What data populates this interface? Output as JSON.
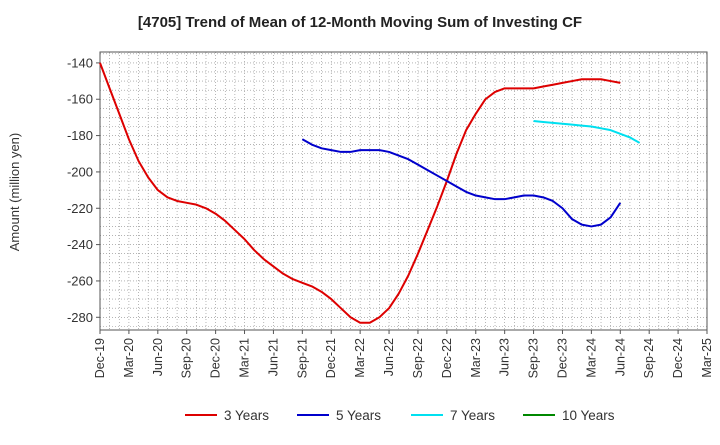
{
  "chart_data": {
    "type": "line",
    "title": "[4705]  Trend of Mean of 12-Month Moving Sum of Investing CF",
    "ylabel": "Amount (million yen)",
    "xlabel": "",
    "ylim": [
      -287,
      -134
    ],
    "yticks": [
      -140,
      -160,
      -180,
      -200,
      -220,
      -240,
      -260,
      -280
    ],
    "grid": true,
    "legend_position": "bottom",
    "x_start": "Dec-19",
    "x_end": "Mar-25",
    "x_tick_labels": [
      "Dec-19",
      "Mar-20",
      "Jun-20",
      "Sep-20",
      "Dec-20",
      "Mar-21",
      "Jun-21",
      "Sep-21",
      "Dec-21",
      "Mar-22",
      "Jun-22",
      "Sep-22",
      "Dec-22",
      "Mar-23",
      "Jun-23",
      "Sep-23",
      "Dec-23",
      "Mar-24",
      "Jun-24",
      "Sep-24",
      "Dec-24",
      "Mar-25"
    ],
    "series": [
      {
        "name": "3 Years",
        "color": "#dd0000",
        "start": "Dec-19",
        "values": [
          -140,
          -154,
          -168,
          -182,
          -194,
          -203,
          -210,
          -214,
          -216,
          -217,
          -218,
          -220,
          -223,
          -227,
          -232,
          -237,
          -243,
          -248,
          -252,
          -256,
          -259,
          -261,
          -263,
          -266,
          -270,
          -275,
          -280,
          -283,
          -283,
          -280,
          -275,
          -267,
          -257,
          -245,
          -232,
          -219,
          -205,
          -190,
          -177,
          -168,
          -160,
          -156,
          -154,
          -154,
          -154,
          -154,
          -153,
          -152,
          -151,
          -150,
          -149,
          -149,
          -149,
          -150,
          -151
        ]
      },
      {
        "name": "5 Years",
        "color": "#0000cc",
        "start": "Sep-21",
        "values": [
          -182,
          -185,
          -187,
          -188,
          -189,
          -189,
          -188,
          -188,
          -188,
          -189,
          -191,
          -193,
          -196,
          -199,
          -202,
          -205,
          -208,
          -211,
          -213,
          -214,
          -215,
          -215,
          -214,
          -213,
          -213,
          -214,
          -216,
          -220,
          -226,
          -229,
          -230,
          -229,
          -225,
          -217
        ]
      },
      {
        "name": "7 Years",
        "color": "#00e0f0",
        "start": "Sep-23",
        "values": [
          -172,
          -172.5,
          -173,
          -173.5,
          -174,
          -174.5,
          -175,
          -176,
          -177,
          -179,
          -181,
          -184
        ]
      },
      {
        "name": "10 Years",
        "color": "#008800",
        "start": "Sep-24",
        "values": []
      }
    ]
  }
}
